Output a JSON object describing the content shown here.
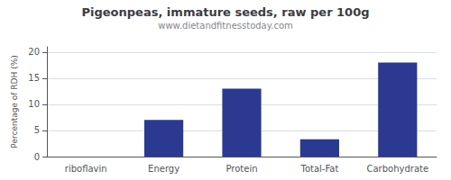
{
  "chart_data": {
    "type": "bar",
    "title": "Pigeonpeas, immature seeds, raw per 100g",
    "subtitle": "www.dietandfitnesstoday.com",
    "categories": [
      "riboflavin",
      "Energy",
      "Protein",
      "Total-Fat",
      "Carbohydrate"
    ],
    "values": [
      0,
      7,
      13,
      3.3,
      18
    ],
    "color": "#2B3990",
    "ylabel": "Percentage of RDH (%)",
    "ylim": [
      0,
      21
    ],
    "yticks": [
      0,
      5,
      10,
      15,
      20
    ],
    "grid": true
  }
}
